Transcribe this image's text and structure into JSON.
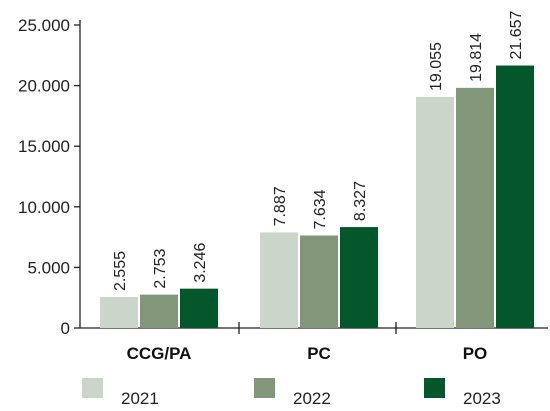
{
  "chart_data": {
    "type": "bar",
    "title": "",
    "xlabel": "",
    "ylabel": "",
    "categories": [
      "CCG/PA",
      "PC",
      "PO"
    ],
    "series": [
      {
        "name": "2021",
        "values": [
          2555,
          7887,
          19055
        ],
        "labels": [
          "2.555",
          "7.887",
          "19.055"
        ],
        "color": "#ccd5c9"
      },
      {
        "name": "2022",
        "values": [
          2753,
          7634,
          19814
        ],
        "labels": [
          "2.753",
          "7.634",
          "19.814"
        ],
        "color": "#82977a"
      },
      {
        "name": "2023",
        "values": [
          3246,
          8327,
          21657
        ],
        "labels": [
          "3.246",
          "8.327",
          "21.657"
        ],
        "color": "#04572a"
      }
    ],
    "ylim": [
      0,
      25000
    ],
    "yticks": [
      0,
      5000,
      10000,
      15000,
      20000,
      25000
    ],
    "ytick_labels": [
      "0",
      "5.000",
      "10.000",
      "15.000",
      "20.000",
      "25.000"
    ],
    "grid": false,
    "legend": "bottom"
  }
}
